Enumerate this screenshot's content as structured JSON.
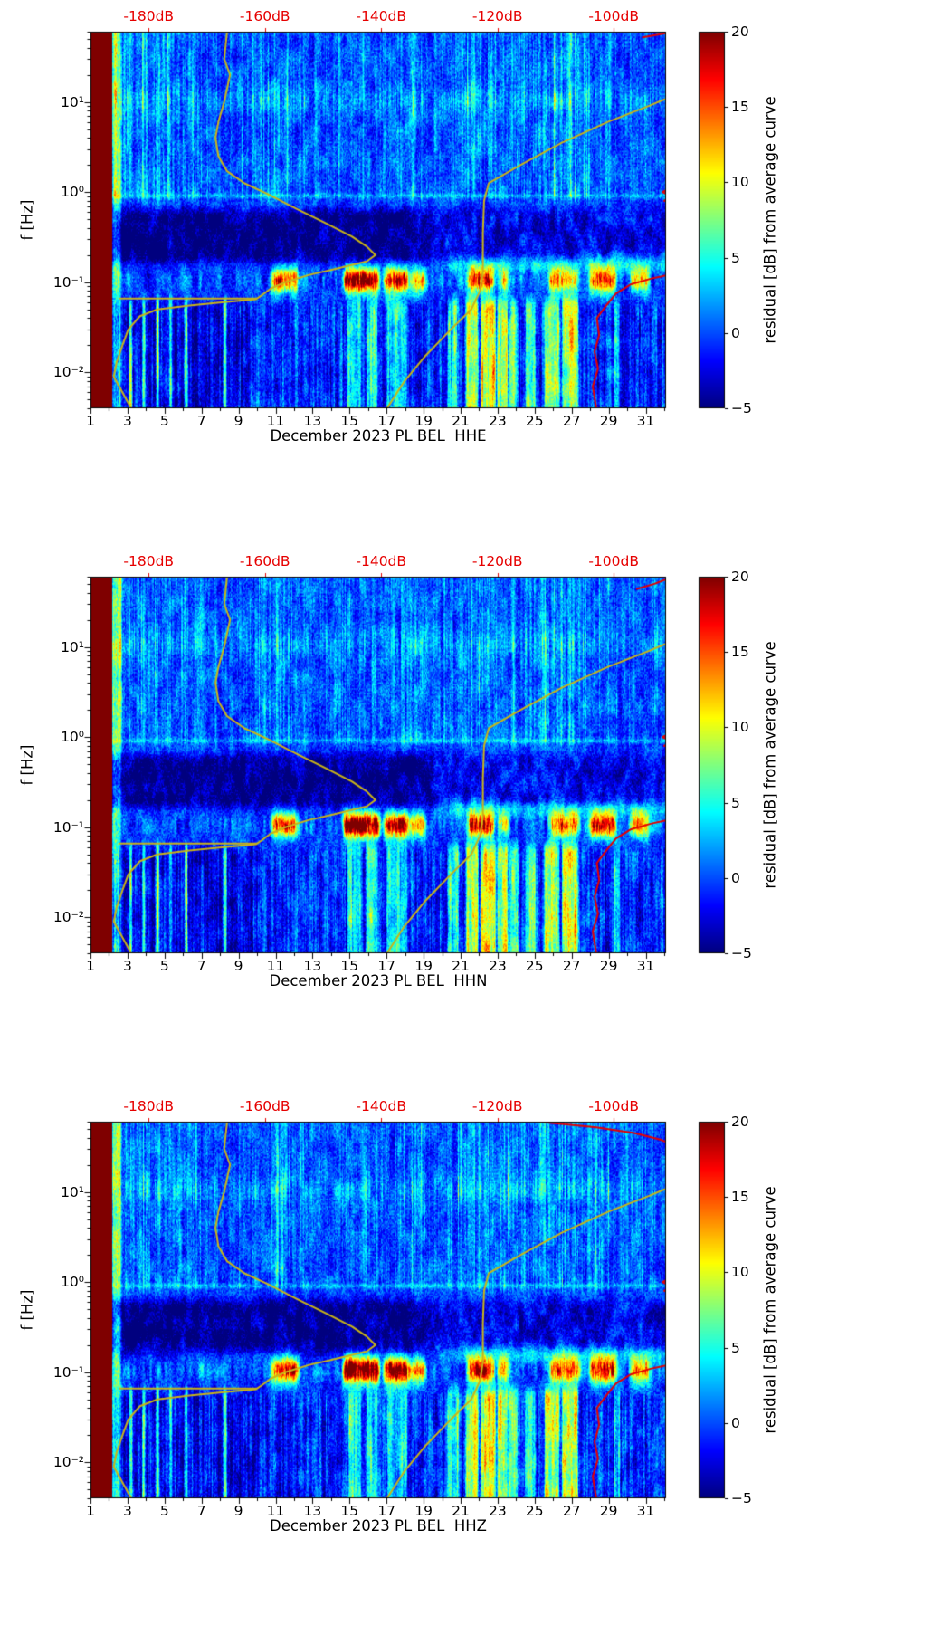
{
  "shared": {
    "ylabel": "f [Hz]",
    "top_axis": {
      "color": "#e60000",
      "label_values": [
        -180,
        -160,
        -140,
        -120,
        -100
      ],
      "labels": [
        "-180dB",
        "-160dB",
        "-140dB",
        "-120dB",
        "-100dB"
      ]
    },
    "x_ticks": {
      "values": [
        1,
        3,
        5,
        7,
        9,
        11,
        13,
        15,
        17,
        19,
        21,
        23,
        25,
        27,
        29,
        31
      ],
      "labels": [
        "1",
        "3",
        "5",
        "7",
        "9",
        "11",
        "13",
        "15",
        "17",
        "19",
        "21",
        "23",
        "25",
        "27",
        "29",
        "31"
      ]
    },
    "y_ticks": {
      "values": [
        10,
        1,
        0.1,
        0.01
      ],
      "labels": [
        "10¹",
        "10⁰",
        "10⁻¹",
        "10⁻²"
      ]
    },
    "colorbar": {
      "label": "residual [dB] from average curve",
      "tick_values": [
        20,
        15,
        10,
        5,
        0,
        -5
      ],
      "tick_labels": [
        "20",
        "15",
        "10",
        "5",
        "0",
        "−5"
      ],
      "vmin": -5,
      "vmax": 20,
      "colormap": "jet"
    }
  },
  "panels": [
    {
      "channel": "HHE",
      "xlabel": "December 2023 PL BEL  HHE",
      "seed": 11
    },
    {
      "channel": "HHN",
      "xlabel": "December 2023 PL BEL  HHN",
      "seed": 23
    },
    {
      "channel": "HHZ",
      "xlabel": "December 2023 PL BEL  HHZ",
      "seed": 37
    }
  ],
  "overlays": {
    "curves": [
      {
        "name": "average-curve",
        "color": "#c9b418",
        "width": 2,
        "points": [
          [
            60,
            -166.5
          ],
          [
            30,
            -167
          ],
          [
            20,
            -166
          ],
          [
            10,
            -167
          ],
          [
            6,
            -168
          ],
          [
            4,
            -168.5
          ],
          [
            2.5,
            -168
          ],
          [
            1.7,
            -166.5
          ],
          [
            1.25,
            -163.5
          ],
          [
            0.95,
            -159.5
          ],
          [
            0.65,
            -154.5
          ],
          [
            0.45,
            -149.5
          ],
          [
            0.32,
            -145
          ],
          [
            0.25,
            -142.5
          ],
          [
            0.2,
            -141
          ],
          [
            0.17,
            -142.5
          ],
          [
            0.14,
            -148
          ],
          [
            0.12,
            -152.5
          ],
          [
            0.1,
            -156.5
          ],
          [
            0.085,
            -159
          ],
          [
            0.072,
            -160.5
          ],
          [
            0.065,
            -161.5
          ],
          [
            0.06,
            -167
          ],
          [
            0.055,
            -173
          ],
          [
            0.05,
            -178.5
          ],
          [
            0.042,
            -181.5
          ],
          [
            0.03,
            -183.5
          ],
          [
            0.02,
            -184.5
          ],
          [
            0.013,
            -185.5
          ],
          [
            0.009,
            -186
          ],
          [
            0.006,
            -184.5
          ],
          [
            0.004,
            -183
          ]
        ]
      },
      {
        "name": "average-curve-flat-segment",
        "color": "#c9b418",
        "width": 2,
        "points": [
          [
            0.066,
            -185
          ],
          [
            0.066,
            -161.5
          ]
        ]
      },
      {
        "name": "high-noise-model-curve",
        "color": "#c9b418",
        "width": 2,
        "points": [
          [
            0.004,
            -139
          ],
          [
            0.008,
            -136
          ],
          [
            0.015,
            -132.5
          ],
          [
            0.03,
            -128
          ],
          [
            0.05,
            -124.5
          ],
          [
            0.08,
            -123
          ],
          [
            0.13,
            -122.5
          ],
          [
            0.35,
            -122.5
          ],
          [
            0.8,
            -122.3
          ],
          [
            1.25,
            -121.5
          ],
          [
            2,
            -116
          ],
          [
            3.5,
            -109
          ],
          [
            6,
            -101
          ],
          [
            9,
            -94
          ],
          [
            11.5,
            -90
          ]
        ]
      },
      {
        "name": "red-curve-low-frequency",
        "color": "#e60000",
        "width": 2,
        "points": [
          [
            0.004,
            -103
          ],
          [
            0.007,
            -103.6
          ],
          [
            0.011,
            -102.7
          ],
          [
            0.017,
            -103.3
          ],
          [
            0.026,
            -102.5
          ],
          [
            0.04,
            -102.9
          ],
          [
            0.055,
            -101.3
          ],
          [
            0.075,
            -99.6
          ],
          [
            0.095,
            -97
          ],
          [
            0.11,
            -93.5
          ],
          [
            0.125,
            -89.5
          ]
        ]
      },
      {
        "name": "red-curve-near-1hz",
        "color": "#e60000",
        "width": 2,
        "points": [
          [
            0.72,
            -89.5
          ],
          [
            0.8,
            -91.3
          ],
          [
            0.9,
            -90.2
          ],
          [
            1.0,
            -91.6
          ],
          [
            1.1,
            -90.4
          ],
          [
            1.2,
            -89.5
          ]
        ]
      }
    ]
  },
  "texture": {
    "stripe_intensity_by_day": [
      0,
      1.0,
      0.85,
      0.8,
      0.75,
      0.8,
      0.7,
      0.55,
      0.4,
      0.6,
      0.75,
      0.8,
      0.6,
      0.55,
      0.6,
      0.65,
      0.55,
      0.7,
      0.75,
      0.65,
      0.7,
      0.85,
      0.9,
      0.75,
      0.65,
      0.85,
      0.95,
      0.9,
      0.65,
      0.55,
      0.6,
      0.55
    ],
    "no_data_column_days": [
      1.0,
      2.15
    ],
    "bright_columns": [
      {
        "days": [
          2.2,
          2.65
        ],
        "amp": 8
      }
    ],
    "microseism_band_center_hz": 0.105,
    "hot_blobs_microseism": [
      {
        "days": [
          10.8,
          12.2
        ],
        "amp": 14
      },
      {
        "days": [
          14.7,
          16.6
        ],
        "amp": 21
      },
      {
        "days": [
          16.9,
          18.2
        ],
        "amp": 18
      },
      {
        "days": [
          18.3,
          19.1
        ],
        "amp": 12
      },
      {
        "days": [
          21.4,
          22.8
        ],
        "amp": 17
      },
      {
        "days": [
          23.0,
          23.6
        ],
        "amp": 10
      },
      {
        "days": [
          25.8,
          27.4
        ],
        "amp": 13
      },
      {
        "days": [
          28.0,
          29.4
        ],
        "amp": 15
      },
      {
        "days": [
          30.2,
          31.2
        ],
        "amp": 11
      }
    ],
    "low_freq_streaks": [
      {
        "days": [
          3.1,
          3.25
        ],
        "amp": 13
      },
      {
        "days": [
          3.8,
          3.95
        ],
        "amp": 11
      },
      {
        "days": [
          4.55,
          4.7
        ],
        "amp": 14
      },
      {
        "days": [
          5.25,
          5.4
        ],
        "amp": 10
      },
      {
        "days": [
          6.1,
          6.25
        ],
        "amp": 12
      },
      {
        "days": [
          8.2,
          8.35
        ],
        "amp": 13
      },
      {
        "days": [
          14.9,
          15.6
        ],
        "amp": 7
      },
      {
        "days": [
          15.9,
          16.5
        ],
        "amp": 8
      },
      {
        "days": [
          17.0,
          18.1
        ],
        "amp": 6
      },
      {
        "days": [
          20.3,
          20.9
        ],
        "amp": 8
      },
      {
        "days": [
          21.3,
          21.95
        ],
        "amp": 12
      },
      {
        "days": [
          22.1,
          22.9
        ],
        "amp": 15
      },
      {
        "days": [
          23.0,
          23.55
        ],
        "amp": 13
      },
      {
        "days": [
          23.6,
          24.1
        ],
        "amp": 9
      },
      {
        "days": [
          24.5,
          25.05
        ],
        "amp": 8
      },
      {
        "days": [
          25.55,
          26.35
        ],
        "amp": 12
      },
      {
        "days": [
          26.5,
          27.35
        ],
        "amp": 14
      },
      {
        "days": [
          29.3,
          29.6
        ],
        "amp": 6
      }
    ],
    "dark_band_f_hz": [
      0.17,
      0.62
    ],
    "one_hz_line_f": 0.95
  },
  "chart_data": [
    {
      "type": "heatmap",
      "subtype": "spectrogram-residual",
      "channel": "HHE",
      "station": "PL BEL",
      "month": "December 2023",
      "xlabel": "December 2023 PL BEL  HHE",
      "x_axis": {
        "unit": "day of month",
        "range": [
          1,
          32.1
        ],
        "tick_values": [
          1,
          3,
          5,
          7,
          9,
          11,
          13,
          15,
          17,
          19,
          21,
          23,
          25,
          27,
          29,
          31
        ]
      },
      "y_axis": {
        "label": "f [Hz]",
        "scale": "log",
        "range_hz": [
          0.004,
          60
        ],
        "tick_values_hz": [
          0.01,
          0.1,
          1,
          10
        ]
      },
      "top_axis": {
        "unit": "dB",
        "range": [
          -190,
          -91
        ],
        "tick_values": [
          -180,
          -160,
          -140,
          -120,
          -100
        ]
      },
      "colorbar": {
        "label": "residual [dB] from average curve",
        "range": [
          -5,
          20
        ],
        "tick_values": [
          20,
          15,
          10,
          5,
          0,
          -5
        ],
        "colormap": "jet"
      },
      "blob_amp_scale": 1.0,
      "overlay_curves_ref": "overlays.curves",
      "texture_ref": "texture",
      "red_curve_top": {
        "name": "red-curve-top",
        "color": "#e60000",
        "width": 2,
        "points": [
          [
            52,
            -95
          ],
          [
            57,
            -91.5
          ],
          [
            60,
            -90
          ]
        ]
      }
    },
    {
      "type": "heatmap",
      "subtype": "spectrogram-residual",
      "channel": "HHN",
      "station": "PL BEL",
      "month": "December 2023",
      "xlabel": "December 2023 PL BEL  HHN",
      "x_axis": {
        "unit": "day of month",
        "range": [
          1,
          32.1
        ],
        "tick_values": [
          1,
          3,
          5,
          7,
          9,
          11,
          13,
          15,
          17,
          19,
          21,
          23,
          25,
          27,
          29,
          31
        ]
      },
      "y_axis": {
        "label": "f [Hz]",
        "scale": "log",
        "range_hz": [
          0.004,
          60
        ],
        "tick_values_hz": [
          0.01,
          0.1,
          1,
          10
        ]
      },
      "top_axis": {
        "unit": "dB",
        "range": [
          -190,
          -91
        ],
        "tick_values": [
          -180,
          -160,
          -140,
          -120,
          -100
        ]
      },
      "colorbar": {
        "label": "residual [dB] from average curve",
        "range": [
          -5,
          20
        ],
        "tick_values": [
          20,
          15,
          10,
          5,
          0,
          -5
        ],
        "colormap": "jet"
      },
      "blob_amp_scale": 1.05,
      "overlay_curves_ref": "overlays.curves",
      "texture_ref": "texture",
      "red_curve_top": {
        "name": "red-curve-top",
        "color": "#e60000",
        "width": 2,
        "points": [
          [
            44,
            -96
          ],
          [
            50,
            -93
          ],
          [
            56,
            -91
          ],
          [
            60,
            -90.5
          ]
        ]
      }
    },
    {
      "type": "heatmap",
      "subtype": "spectrogram-residual",
      "channel": "HHZ",
      "station": "PL BEL",
      "month": "December 2023",
      "xlabel": "December 2023 PL BEL  HHZ",
      "x_axis": {
        "unit": "day of month",
        "range": [
          1,
          32.1
        ],
        "tick_values": [
          1,
          3,
          5,
          7,
          9,
          11,
          13,
          15,
          17,
          19,
          21,
          23,
          25,
          27,
          29,
          31
        ]
      },
      "y_axis": {
        "label": "f [Hz]",
        "scale": "log",
        "range_hz": [
          0.004,
          60
        ],
        "tick_values_hz": [
          0.01,
          0.1,
          1,
          10
        ]
      },
      "top_axis": {
        "unit": "dB",
        "range": [
          -190,
          -91
        ],
        "tick_values": [
          -180,
          -160,
          -140,
          -120,
          -100
        ]
      },
      "colorbar": {
        "label": "residual [dB] from average curve",
        "range": [
          -5,
          20
        ],
        "tick_values": [
          20,
          15,
          10,
          5,
          0,
          -5
        ],
        "colormap": "jet"
      },
      "blob_amp_scale": 1.15,
      "overlay_curves_ref": "overlays.curves",
      "texture_ref": "texture",
      "red_curve_top": {
        "name": "red-curve-top",
        "color": "#e60000",
        "width": 2,
        "points": [
          [
            60,
            -113
          ],
          [
            52,
            -103
          ],
          [
            45,
            -96.5
          ],
          [
            38,
            -92
          ],
          [
            33,
            -89.5
          ]
        ]
      }
    }
  ]
}
